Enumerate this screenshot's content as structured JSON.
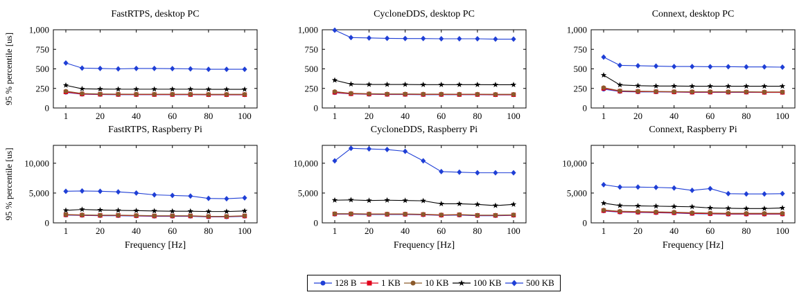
{
  "chart_data": [
    {
      "type": "line",
      "title": "FastRTPS, desktop PC",
      "xlabel": "",
      "ylabel": "95 % percentile [us]",
      "x": [
        1,
        10,
        20,
        30,
        40,
        50,
        60,
        70,
        80,
        90,
        100
      ],
      "xticks": [
        "1",
        "20",
        "40",
        "60",
        "80",
        "100"
      ],
      "yticks": [
        "0",
        "250",
        "500",
        "750",
        "1,000"
      ],
      "ylim": [
        0,
        1000
      ],
      "series": [
        {
          "name": "128 B",
          "values": [
            200,
            175,
            172,
            170,
            170,
            170,
            170,
            170,
            168,
            168,
            168
          ]
        },
        {
          "name": "1 KB",
          "values": [
            205,
            178,
            175,
            173,
            172,
            172,
            172,
            172,
            170,
            170,
            170
          ]
        },
        {
          "name": "10 KB",
          "values": [
            215,
            185,
            180,
            178,
            177,
            177,
            177,
            177,
            175,
            175,
            175
          ]
        },
        {
          "name": "100 KB",
          "values": [
            290,
            245,
            242,
            240,
            240,
            240,
            240,
            240,
            238,
            238,
            238
          ]
        },
        {
          "name": "500 KB",
          "values": [
            575,
            510,
            505,
            500,
            505,
            505,
            503,
            500,
            495,
            495,
            495
          ]
        }
      ]
    },
    {
      "type": "line",
      "title": "CycloneDDS, desktop PC",
      "xlabel": "",
      "ylabel": "",
      "x": [
        1,
        10,
        20,
        30,
        40,
        50,
        60,
        70,
        80,
        90,
        100
      ],
      "xticks": [
        "1",
        "20",
        "40",
        "60",
        "80",
        "100"
      ],
      "yticks": [
        "0",
        "250",
        "500",
        "750",
        "1,000"
      ],
      "ylim": [
        0,
        1000
      ],
      "series": [
        {
          "name": "128 B",
          "values": [
            195,
            180,
            175,
            172,
            172,
            170,
            170,
            170,
            170,
            168,
            168
          ]
        },
        {
          "name": "1 KB",
          "values": [
            200,
            182,
            178,
            175,
            175,
            173,
            173,
            172,
            172,
            170,
            170
          ]
        },
        {
          "name": "10 KB",
          "values": [
            210,
            188,
            183,
            180,
            180,
            178,
            178,
            177,
            177,
            175,
            175
          ]
        },
        {
          "name": "100 KB",
          "values": [
            355,
            305,
            300,
            300,
            300,
            298,
            298,
            298,
            298,
            297,
            297
          ]
        },
        {
          "name": "500 KB",
          "values": [
            995,
            900,
            895,
            890,
            888,
            888,
            885,
            885,
            885,
            880,
            880
          ]
        }
      ]
    },
    {
      "type": "line",
      "title": "Connext, desktop PC",
      "xlabel": "",
      "ylabel": "",
      "x": [
        1,
        10,
        20,
        30,
        40,
        50,
        60,
        70,
        80,
        90,
        100
      ],
      "xticks": [
        "1",
        "20",
        "40",
        "60",
        "80",
        "100"
      ],
      "yticks": [
        "0",
        "250",
        "500",
        "750",
        "1,000"
      ],
      "ylim": [
        0,
        1000
      ],
      "series": [
        {
          "name": "128 B",
          "values": [
            240,
            210,
            205,
            205,
            203,
            200,
            200,
            200,
            200,
            198,
            198
          ]
        },
        {
          "name": "1 KB",
          "values": [
            250,
            215,
            210,
            208,
            205,
            203,
            203,
            203,
            203,
            200,
            200
          ]
        },
        {
          "name": "10 KB",
          "values": [
            260,
            220,
            215,
            212,
            210,
            208,
            208,
            207,
            207,
            205,
            205
          ]
        },
        {
          "name": "100 KB",
          "values": [
            420,
            295,
            285,
            280,
            280,
            278,
            278,
            278,
            278,
            278,
            278
          ]
        },
        {
          "name": "500 KB",
          "values": [
            650,
            545,
            540,
            535,
            530,
            530,
            528,
            528,
            525,
            525,
            522
          ]
        }
      ]
    },
    {
      "type": "line",
      "title": "FastRTPS, Raspberry Pi",
      "xlabel": "Frequency [Hz]",
      "ylabel": "95 % percentile [us]",
      "x": [
        1,
        10,
        20,
        30,
        40,
        50,
        60,
        70,
        80,
        90,
        100
      ],
      "xticks": [
        "1",
        "20",
        "40",
        "60",
        "80",
        "100"
      ],
      "yticks": [
        "0",
        "5,000",
        "10,000"
      ],
      "ylim": [
        0,
        13000
      ],
      "series": [
        {
          "name": "128 B",
          "values": [
            1300,
            1250,
            1200,
            1200,
            1150,
            1100,
            1100,
            1100,
            1000,
            1000,
            1100
          ]
        },
        {
          "name": "1 KB",
          "values": [
            1350,
            1300,
            1250,
            1250,
            1200,
            1150,
            1150,
            1150,
            1050,
            1050,
            1150
          ]
        },
        {
          "name": "10 KB",
          "values": [
            1400,
            1350,
            1300,
            1300,
            1250,
            1200,
            1200,
            1200,
            1100,
            1100,
            1200
          ]
        },
        {
          "name": "100 KB",
          "values": [
            2100,
            2250,
            2150,
            2100,
            2050,
            2000,
            1950,
            1950,
            1900,
            1900,
            2000
          ]
        },
        {
          "name": "500 KB",
          "values": [
            5300,
            5350,
            5300,
            5200,
            5000,
            4700,
            4600,
            4500,
            4100,
            4050,
            4200
          ]
        }
      ]
    },
    {
      "type": "line",
      "title": "CycloneDDS, Raspberry Pi",
      "xlabel": "Frequency [Hz]",
      "ylabel": "",
      "x": [
        1,
        10,
        20,
        30,
        40,
        50,
        60,
        70,
        80,
        90,
        100
      ],
      "xticks": [
        "1",
        "20",
        "40",
        "60",
        "80",
        "100"
      ],
      "yticks": [
        "0",
        "5,000",
        "10,000"
      ],
      "ylim": [
        0,
        13000
      ],
      "series": [
        {
          "name": "128 B",
          "values": [
            1450,
            1450,
            1400,
            1400,
            1400,
            1350,
            1250,
            1300,
            1200,
            1200,
            1250
          ]
        },
        {
          "name": "1 KB",
          "values": [
            1500,
            1500,
            1450,
            1450,
            1450,
            1400,
            1300,
            1350,
            1250,
            1250,
            1300
          ]
        },
        {
          "name": "10 KB",
          "values": [
            1550,
            1550,
            1500,
            1500,
            1500,
            1450,
            1350,
            1400,
            1300,
            1300,
            1350
          ]
        },
        {
          "name": "100 KB",
          "values": [
            3800,
            3850,
            3750,
            3800,
            3750,
            3700,
            3200,
            3200,
            3100,
            2900,
            3100
          ]
        },
        {
          "name": "500 KB",
          "values": [
            10400,
            12500,
            12400,
            12300,
            12000,
            10400,
            8600,
            8500,
            8400,
            8400,
            8400
          ]
        }
      ]
    },
    {
      "type": "line",
      "title": "Connext, Raspberry Pi",
      "xlabel": "Frequency [Hz]",
      "ylabel": "",
      "x": [
        1,
        10,
        20,
        30,
        40,
        50,
        60,
        70,
        80,
        90,
        100
      ],
      "xticks": [
        "1",
        "20",
        "40",
        "60",
        "80",
        "100"
      ],
      "yticks": [
        "0",
        "5,000",
        "10,000"
      ],
      "ylim": [
        0,
        13000
      ],
      "series": [
        {
          "name": "128 B",
          "values": [
            2000,
            1800,
            1750,
            1700,
            1650,
            1550,
            1500,
            1450,
            1450,
            1450,
            1450
          ]
        },
        {
          "name": "1 KB",
          "values": [
            2050,
            1850,
            1800,
            1750,
            1700,
            1600,
            1550,
            1500,
            1500,
            1500,
            1500
          ]
        },
        {
          "name": "10 KB",
          "values": [
            2150,
            1950,
            1900,
            1850,
            1800,
            1700,
            1650,
            1600,
            1600,
            1600,
            1600
          ]
        },
        {
          "name": "100 KB",
          "values": [
            3300,
            2900,
            2850,
            2800,
            2750,
            2700,
            2500,
            2450,
            2400,
            2400,
            2500
          ]
        },
        {
          "name": "500 KB",
          "values": [
            6400,
            6000,
            6000,
            5950,
            5850,
            5450,
            5750,
            4900,
            4850,
            4850,
            4900
          ]
        }
      ]
    }
  ],
  "legend": {
    "placement": "bottom-center",
    "entries": [
      {
        "label": "128 B",
        "color": "#1f3fd6",
        "marker": "circle"
      },
      {
        "label": "1 KB",
        "color": "#e0001a",
        "marker": "square"
      },
      {
        "label": "10 KB",
        "color": "#8b5a2b",
        "marker": "circle"
      },
      {
        "label": "100 KB",
        "color": "#000000",
        "marker": "star"
      },
      {
        "label": "500 KB",
        "color": "#1f3fd6",
        "marker": "diamond"
      }
    ]
  }
}
